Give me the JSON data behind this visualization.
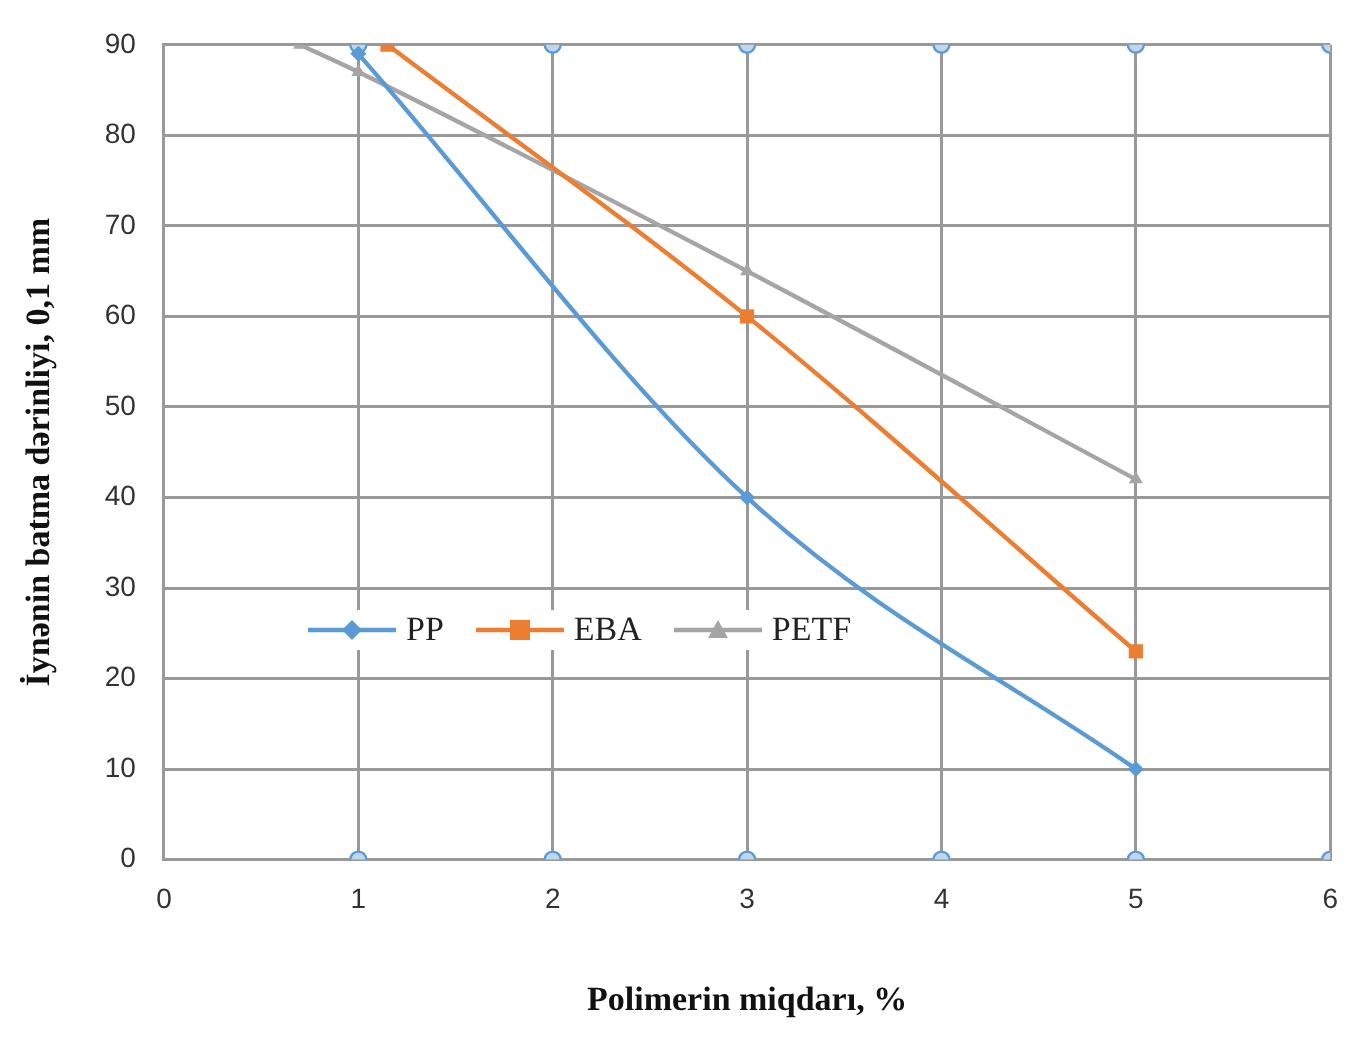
{
  "chart_data": {
    "type": "line",
    "xlabel": "Polimerin miqdarı, %",
    "ylabel": "İynənin batma dərinliyi, 0,1 mm",
    "xlim": [
      0,
      6
    ],
    "xticks": [
      0,
      1,
      2,
      3,
      4,
      5,
      6
    ],
    "ylim": [
      0,
      90
    ],
    "yticks": [
      0,
      10,
      20,
      30,
      40,
      50,
      60,
      70,
      80,
      90
    ],
    "grid": true,
    "legend": "left",
    "series": [
      {
        "name": "PP",
        "color": "#5b9bd5",
        "x": [
          1,
          3,
          5
        ],
        "values": [
          89,
          40,
          10
        ],
        "marker": "diamond"
      },
      {
        "name": "EBA",
        "color": "#ed7d31",
        "x": [
          1.15,
          3,
          5
        ],
        "values": [
          90,
          60,
          23
        ],
        "marker": "square"
      },
      {
        "name": "PETF",
        "color": "#a5a5a5",
        "x": [
          0.7,
          1,
          3,
          5
        ],
        "values": [
          90,
          87,
          65,
          42
        ],
        "marker": "triangle"
      },
      {
        "type": "scatter",
        "color": "#5b9bd5",
        "x": [
          1,
          2,
          3,
          4,
          5,
          6
        ],
        "values": [
          0,
          0,
          0,
          0,
          0,
          0
        ],
        "marker": "circle"
      },
      {
        "type": "scatter",
        "color": "#5b9bd5",
        "x": [
          1,
          2,
          3,
          4,
          5,
          6
        ],
        "values": [
          90,
          90,
          90,
          90,
          90,
          90
        ],
        "marker": "circle"
      }
    ]
  }
}
